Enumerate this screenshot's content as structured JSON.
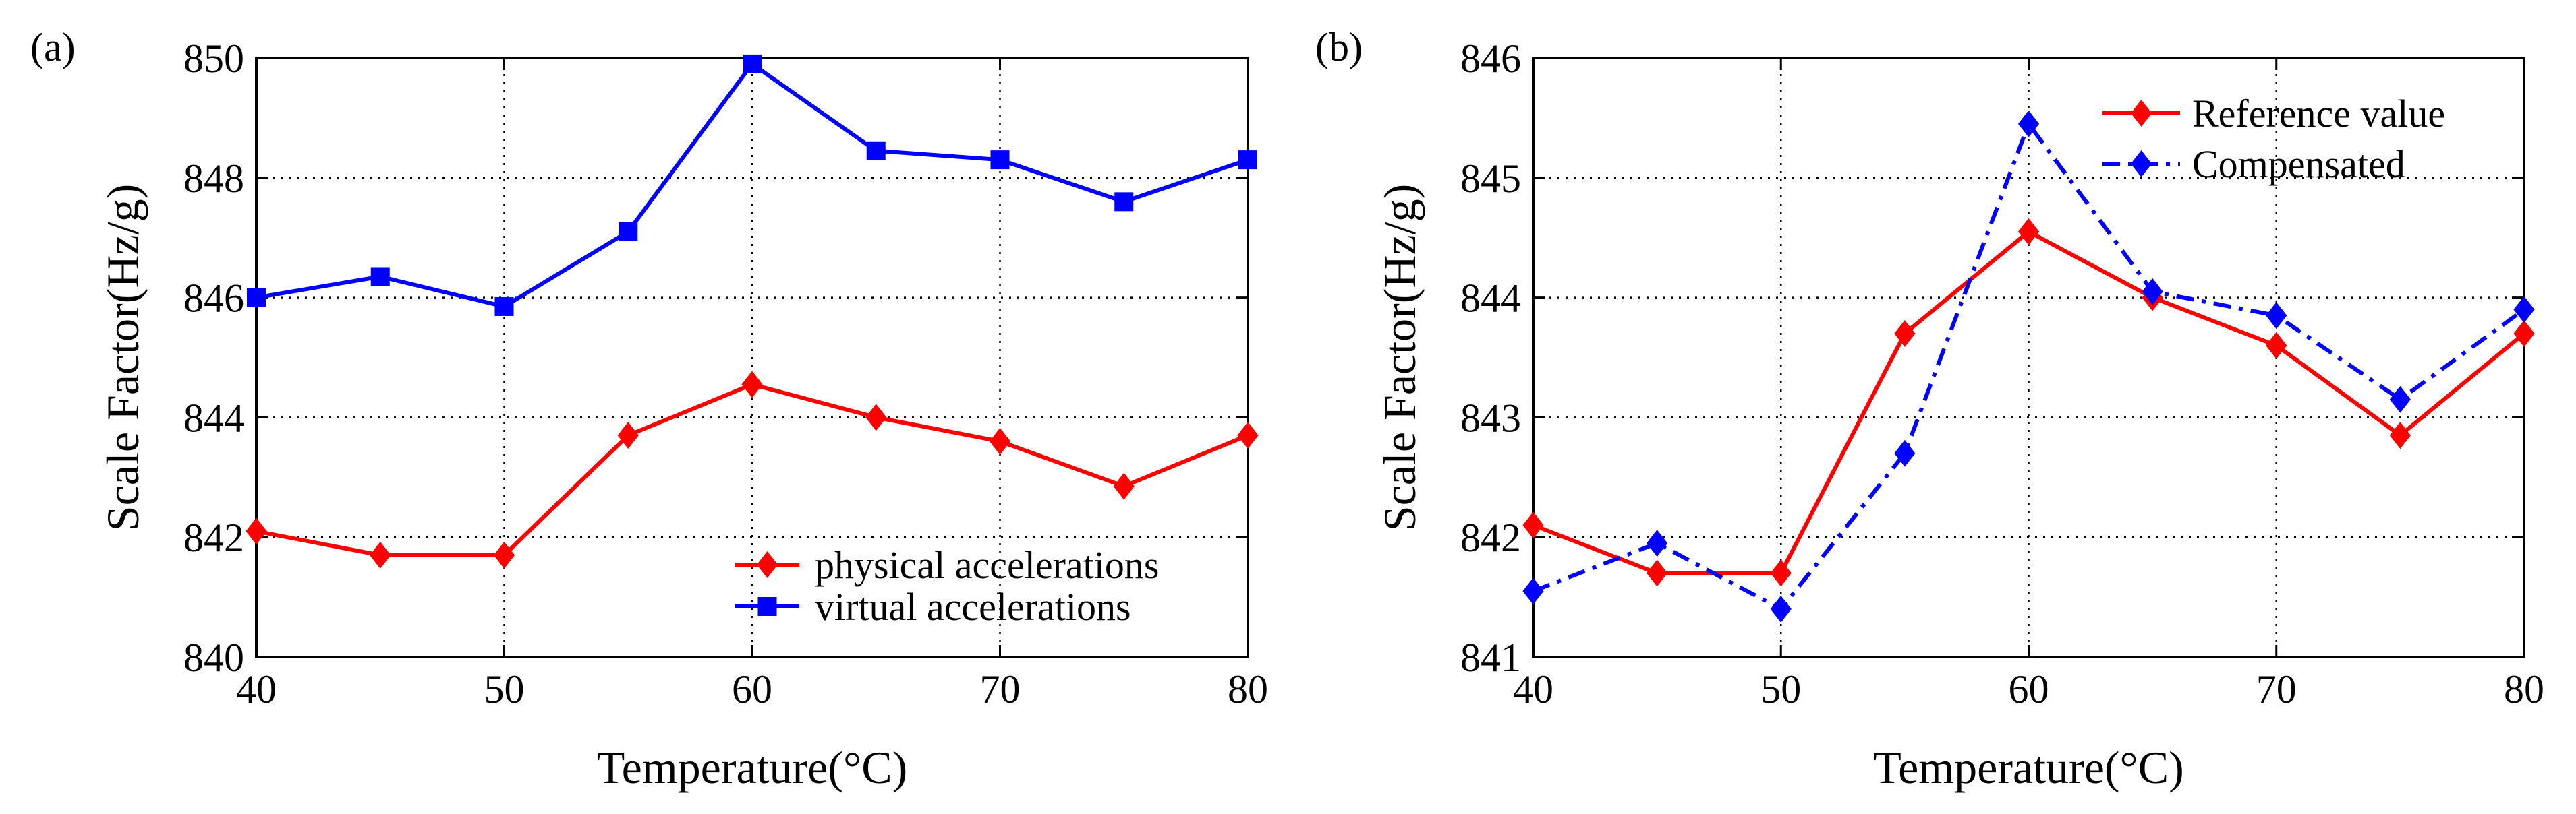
{
  "chart_data": [
    {
      "type": "line",
      "panel_label": "(a)",
      "title": "",
      "xlabel": "Temperature(°C)",
      "ylabel": "Scale Factor(Hz/g)",
      "xlim": [
        40,
        80
      ],
      "ylim": [
        840,
        850
      ],
      "x_ticks": [
        40,
        50,
        60,
        70,
        80
      ],
      "y_ticks": [
        840,
        842,
        844,
        846,
        848,
        850
      ],
      "grid": true,
      "legend_position": "bottom-right",
      "x": [
        40,
        45,
        50,
        55,
        60,
        65,
        70,
        75,
        80
      ],
      "series": [
        {
          "name": "physical accelerations",
          "color": "#ff0000",
          "marker": "diamond",
          "line_style": "solid",
          "values": [
            842.1,
            841.7,
            841.7,
            843.7,
            844.55,
            844.0,
            843.6,
            842.85,
            843.7
          ]
        },
        {
          "name": "virtual accelerations",
          "color": "#0000ff",
          "marker": "square",
          "line_style": "solid",
          "values": [
            846.0,
            846.35,
            845.85,
            847.1,
            849.9,
            848.45,
            848.3,
            847.6,
            848.3
          ]
        }
      ]
    },
    {
      "type": "line",
      "panel_label": "(b)",
      "title": "",
      "xlabel": "Temperature(°C)",
      "ylabel": "Scale Factor(Hz/g)",
      "xlim": [
        40,
        80
      ],
      "ylim": [
        841,
        846
      ],
      "x_ticks": [
        40,
        50,
        60,
        70,
        80
      ],
      "y_ticks": [
        841,
        842,
        843,
        844,
        845,
        846
      ],
      "grid": true,
      "legend_position": "top-right",
      "x": [
        40,
        45,
        50,
        55,
        60,
        65,
        70,
        75,
        80
      ],
      "series": [
        {
          "name": "Reference value",
          "color": "#ff0000",
          "marker": "diamond",
          "line_style": "solid",
          "values": [
            842.1,
            841.7,
            841.7,
            843.7,
            844.55,
            844.0,
            843.6,
            842.85,
            843.7
          ]
        },
        {
          "name": "Compensated",
          "color": "#0000ff",
          "marker": "diamond",
          "line_style": "dashdot",
          "values": [
            841.55,
            841.95,
            841.4,
            842.7,
            845.45,
            844.05,
            843.85,
            843.15,
            843.9
          ]
        }
      ]
    }
  ]
}
